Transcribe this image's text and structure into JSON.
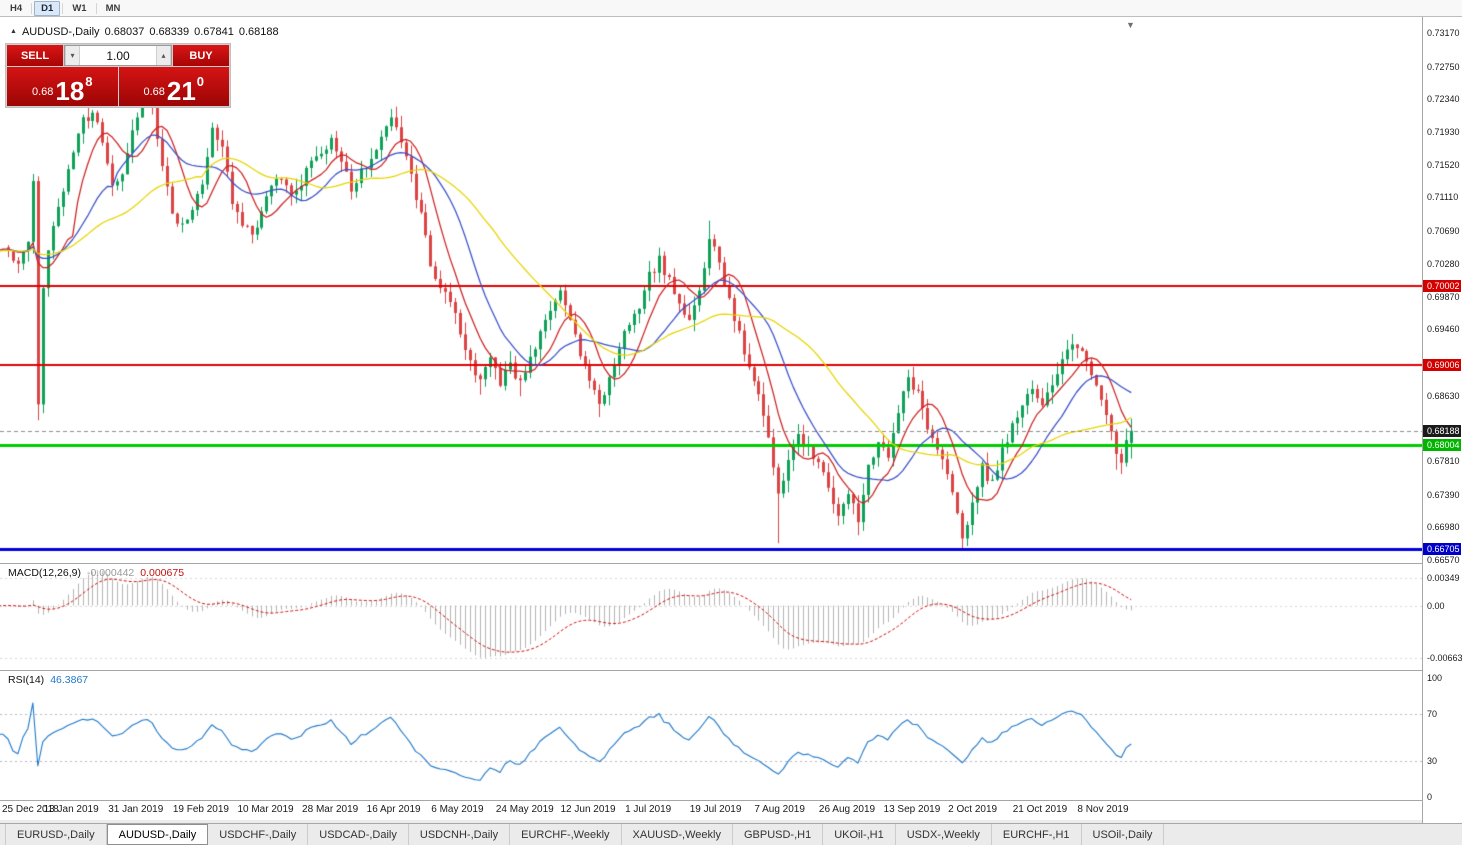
{
  "icons": {
    "one_click_toggle": "▲",
    "volume_down": "▾",
    "volume_up": "▴",
    "shift_marker": "▼"
  },
  "toolbar": {
    "timeframes": [
      {
        "label": "H4",
        "active": false
      },
      {
        "label": "D1",
        "active": true
      },
      {
        "label": "W1",
        "active": false
      },
      {
        "label": "MN",
        "active": false
      }
    ]
  },
  "chart": {
    "title": {
      "symbol": "AUDUSD-,Daily",
      "open": "0.68037",
      "high": "0.68339",
      "low": "0.67841",
      "close": "0.68188"
    },
    "trade_panel": {
      "sell_label": "SELL",
      "buy_label": "BUY",
      "volume": "1.00",
      "sell_price": {
        "prefix": "0.68",
        "big": "18",
        "sup": "8"
      },
      "buy_price": {
        "prefix": "0.68",
        "big": "21",
        "sup": "0"
      }
    },
    "price_axis_labels": [
      "0.73170",
      "0.72750",
      "0.72340",
      "0.71930",
      "0.71520",
      "0.71110",
      "0.70690",
      "0.70280",
      "0.69870",
      "0.69460",
      "0.68630",
      "0.67810",
      "0.67390",
      "0.66980",
      "0.66570"
    ],
    "price_badges": [
      {
        "label": "0.70002",
        "price": 0.70002,
        "color": "#d40000"
      },
      {
        "label": "0.69006",
        "price": 0.69006,
        "color": "#d40000"
      },
      {
        "label": "0.68188",
        "price": 0.68188,
        "color": "#1a1a1a"
      },
      {
        "label": "0.68004",
        "price": 0.68004,
        "color": "#00b400"
      },
      {
        "label": "0.66705",
        "price": 0.66705,
        "color": "#0000c8"
      }
    ],
    "hlines": [
      {
        "price": 0.70002,
        "color": "#e00000",
        "width": 2
      },
      {
        "price": 0.69006,
        "color": "#e00000",
        "width": 2
      },
      {
        "price": 0.68004,
        "color": "#00cc00",
        "width": 3
      },
      {
        "price": 0.66705,
        "color": "#0000dd",
        "width": 3
      }
    ],
    "bid_line": {
      "price": 0.68188
    }
  },
  "macd_panel": {
    "name": "MACD(12,26,9)",
    "value_main": "-0.000442",
    "value_signal": "0.000675",
    "axis_labels": [
      {
        "label": "0.00349",
        "value": 0.00349
      },
      {
        "label": "0.00",
        "value": 0
      },
      {
        "label": "-0.00663",
        "value": -0.00663
      }
    ]
  },
  "rsi_panel": {
    "name": "RSI(14)",
    "value": "46.3867",
    "axis_labels": [
      {
        "label": "100",
        "value": 100
      },
      {
        "label": "70",
        "value": 70
      },
      {
        "label": "30",
        "value": 30
      },
      {
        "label": "0",
        "value": 0
      }
    ]
  },
  "date_axis": [
    "25 Dec 2018",
    "13 Jan 2019",
    "31 Jan 2019",
    "19 Feb 2019",
    "10 Mar 2019",
    "28 Mar 2019",
    "16 Apr 2019",
    "6 May 2019",
    "24 May 2019",
    "12 Jun 2019",
    "1 Jul 2019",
    "19 Jul 2019",
    "7 Aug 2019",
    "26 Aug 2019",
    "13 Sep 2019",
    "2 Oct 2019",
    "21 Oct 2019",
    "8 Nov 2019"
  ],
  "tabs": [
    {
      "label": "EURUSD-,Daily",
      "active": false
    },
    {
      "label": "AUDUSD-,Daily",
      "active": true
    },
    {
      "label": "USDCHF-,Daily",
      "active": false
    },
    {
      "label": "USDCAD-,Daily",
      "active": false
    },
    {
      "label": "USDCNH-,Daily",
      "active": false
    },
    {
      "label": "EURCHF-,Weekly",
      "active": false
    },
    {
      "label": "XAUUSD-,Weekly",
      "active": false
    },
    {
      "label": "GBPUSD-,H1",
      "active": false
    },
    {
      "label": "UKOil-,H1",
      "active": false
    },
    {
      "label": "USDX-,Weekly",
      "active": false
    },
    {
      "label": "EURCHF-,H1",
      "active": false
    },
    {
      "label": "USOil-,Daily",
      "active": false
    }
  ],
  "chart_data": {
    "type": "candlestick",
    "symbol": "AUDUSD",
    "timeframe": "Daily",
    "price_min": 0.6657,
    "price_max": 0.7317,
    "num_candles": 227,
    "candles_per_label": 13,
    "last_candle": {
      "open": 0.68037,
      "high": 0.68339,
      "low": 0.67841,
      "close": 0.68188
    },
    "levels": [
      0.70002,
      0.69006,
      0.68004,
      0.66705
    ],
    "close_anchors": [
      [
        0,
        0.7045
      ],
      [
        2,
        0.7025
      ],
      [
        4,
        0.7062
      ],
      [
        5,
        0.7138
      ],
      [
        6,
        0.6852
      ],
      [
        7,
        0.6998
      ],
      [
        9,
        0.7078
      ],
      [
        11,
        0.712
      ],
      [
        13,
        0.7172
      ],
      [
        15,
        0.7205
      ],
      [
        17,
        0.7222
      ],
      [
        19,
        0.718
      ],
      [
        21,
        0.7128
      ],
      [
        23,
        0.7135
      ],
      [
        25,
        0.719
      ],
      [
        27,
        0.7238
      ],
      [
        29,
        0.7228
      ],
      [
        31,
        0.7152
      ],
      [
        33,
        0.7085
      ],
      [
        35,
        0.7072
      ],
      [
        37,
        0.7095
      ],
      [
        39,
        0.713
      ],
      [
        41,
        0.72
      ],
      [
        43,
        0.7172
      ],
      [
        45,
        0.7105
      ],
      [
        47,
        0.7078
      ],
      [
        49,
        0.7062
      ],
      [
        51,
        0.7092
      ],
      [
        53,
        0.7122
      ],
      [
        55,
        0.7138
      ],
      [
        57,
        0.7108
      ],
      [
        59,
        0.7132
      ],
      [
        61,
        0.7152
      ],
      [
        63,
        0.7168
      ],
      [
        65,
        0.7182
      ],
      [
        67,
        0.7158
      ],
      [
        69,
        0.7122
      ],
      [
        71,
        0.7142
      ],
      [
        73,
        0.7162
      ],
      [
        75,
        0.7188
      ],
      [
        77,
        0.7206
      ],
      [
        79,
        0.7178
      ],
      [
        81,
        0.7138
      ],
      [
        83,
        0.7088
      ],
      [
        85,
        0.7028
      ],
      [
        87,
        0.6998
      ],
      [
        89,
        0.6978
      ],
      [
        91,
        0.6942
      ],
      [
        93,
        0.6902
      ],
      [
        95,
        0.6878
      ],
      [
        97,
        0.6912
      ],
      [
        99,
        0.6878
      ],
      [
        101,
        0.6902
      ],
      [
        103,
        0.6876
      ],
      [
        105,
        0.6908
      ],
      [
        107,
        0.6942
      ],
      [
        109,
        0.6968
      ],
      [
        111,
        0.6988
      ],
      [
        113,
        0.6958
      ],
      [
        115,
        0.6918
      ],
      [
        117,
        0.6888
      ],
      [
        119,
        0.6858
      ],
      [
        121,
        0.6882
      ],
      [
        123,
        0.6922
      ],
      [
        125,
        0.6952
      ],
      [
        127,
        0.6978
      ],
      [
        129,
        0.7012
      ],
      [
        131,
        0.7035
      ],
      [
        133,
        0.7005
      ],
      [
        135,
        0.6975
      ],
      [
        137,
        0.6962
      ],
      [
        139,
        0.6995
      ],
      [
        141,
        0.7058
      ],
      [
        143,
        0.7032
      ],
      [
        145,
        0.6982
      ],
      [
        147,
        0.6938
      ],
      [
        149,
        0.6898
      ],
      [
        151,
        0.6868
      ],
      [
        153,
        0.6815
      ],
      [
        155,
        0.6742
      ],
      [
        157,
        0.6782
      ],
      [
        159,
        0.6812
      ],
      [
        161,
        0.6798
      ],
      [
        163,
        0.6778
      ],
      [
        165,
        0.6752
      ],
      [
        167,
        0.6712
      ],
      [
        169,
        0.6742
      ],
      [
        171,
        0.6706
      ],
      [
        173,
        0.6772
      ],
      [
        175,
        0.6802
      ],
      [
        177,
        0.6782
      ],
      [
        179,
        0.6842
      ],
      [
        181,
        0.6888
      ],
      [
        183,
        0.6862
      ],
      [
        185,
        0.6822
      ],
      [
        187,
        0.6792
      ],
      [
        189,
        0.6762
      ],
      [
        191,
        0.6712
      ],
      [
        192,
        0.6678
      ],
      [
        194,
        0.6735
      ],
      [
        196,
        0.6772
      ],
      [
        198,
        0.6752
      ],
      [
        200,
        0.6792
      ],
      [
        202,
        0.6822
      ],
      [
        204,
        0.6852
      ],
      [
        206,
        0.6872
      ],
      [
        208,
        0.6852
      ],
      [
        210,
        0.6878
      ],
      [
        212,
        0.6902
      ],
      [
        214,
        0.6928
      ],
      [
        216,
        0.6918
      ],
      [
        218,
        0.6888
      ],
      [
        220,
        0.6858
      ],
      [
        222,
        0.6822
      ],
      [
        223,
        0.6788
      ],
      [
        224,
        0.6778
      ],
      [
        225,
        0.6802
      ],
      [
        226,
        0.68188
      ]
    ],
    "wick_lows": {
      "6": 0.6832,
      "95": 0.6864,
      "103": 0.6862,
      "119": 0.6836,
      "155": 0.6678,
      "171": 0.6688,
      "192": 0.667,
      "223": 0.677
    },
    "wick_highs": {
      "27": 0.7252,
      "77": 0.721,
      "141": 0.7082,
      "214": 0.694
    },
    "ma": [
      {
        "period": 8,
        "color": "#cc2222"
      },
      {
        "period": 16,
        "color": "#3a50c8"
      },
      {
        "period": 34,
        "color": "#e6d400"
      }
    ],
    "macd": {
      "fast": 12,
      "slow": 26,
      "signal": 9,
      "scale_max": 0.00349,
      "scale_min": -0.00663
    },
    "rsi": {
      "period": 14,
      "last": 46.3867
    },
    "colors": {
      "up": "#0fa05a",
      "down": "#dc4444",
      "macd_hist": "#b4b4b4",
      "macd_signal": "#cc1111",
      "rsi": "#1f78c8",
      "bid_line": "#8c8c8c"
    }
  }
}
